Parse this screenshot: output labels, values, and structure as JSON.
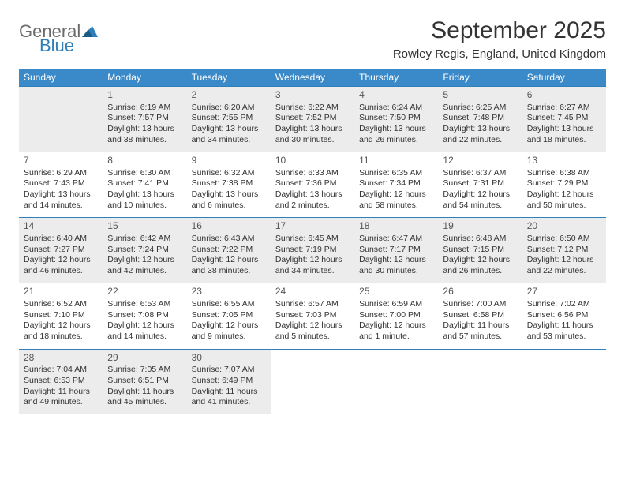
{
  "brand": {
    "line1": "General",
    "line2": "Blue"
  },
  "title": "September 2025",
  "location": "Rowley Regis, England, United Kingdom",
  "colors": {
    "header_bg": "#3a89c9",
    "header_text": "#ffffff",
    "rule": "#2f7fb8",
    "gray_cell": "#ececec",
    "logo_gray": "#6b6b6b",
    "logo_blue": "#2f7fb8"
  },
  "day_headers": [
    "Sunday",
    "Monday",
    "Tuesday",
    "Wednesday",
    "Thursday",
    "Friday",
    "Saturday"
  ],
  "weeks": [
    [
      {
        "num": "",
        "sunrise": "",
        "sunset": "",
        "daylight": "",
        "gray": true
      },
      {
        "num": "1",
        "sunrise": "Sunrise: 6:19 AM",
        "sunset": "Sunset: 7:57 PM",
        "daylight": "Daylight: 13 hours and 38 minutes.",
        "gray": true
      },
      {
        "num": "2",
        "sunrise": "Sunrise: 6:20 AM",
        "sunset": "Sunset: 7:55 PM",
        "daylight": "Daylight: 13 hours and 34 minutes.",
        "gray": true
      },
      {
        "num": "3",
        "sunrise": "Sunrise: 6:22 AM",
        "sunset": "Sunset: 7:52 PM",
        "daylight": "Daylight: 13 hours and 30 minutes.",
        "gray": true
      },
      {
        "num": "4",
        "sunrise": "Sunrise: 6:24 AM",
        "sunset": "Sunset: 7:50 PM",
        "daylight": "Daylight: 13 hours and 26 minutes.",
        "gray": true
      },
      {
        "num": "5",
        "sunrise": "Sunrise: 6:25 AM",
        "sunset": "Sunset: 7:48 PM",
        "daylight": "Daylight: 13 hours and 22 minutes.",
        "gray": true
      },
      {
        "num": "6",
        "sunrise": "Sunrise: 6:27 AM",
        "sunset": "Sunset: 7:45 PM",
        "daylight": "Daylight: 13 hours and 18 minutes.",
        "gray": true
      }
    ],
    [
      {
        "num": "7",
        "sunrise": "Sunrise: 6:29 AM",
        "sunset": "Sunset: 7:43 PM",
        "daylight": "Daylight: 13 hours and 14 minutes."
      },
      {
        "num": "8",
        "sunrise": "Sunrise: 6:30 AM",
        "sunset": "Sunset: 7:41 PM",
        "daylight": "Daylight: 13 hours and 10 minutes."
      },
      {
        "num": "9",
        "sunrise": "Sunrise: 6:32 AM",
        "sunset": "Sunset: 7:38 PM",
        "daylight": "Daylight: 13 hours and 6 minutes."
      },
      {
        "num": "10",
        "sunrise": "Sunrise: 6:33 AM",
        "sunset": "Sunset: 7:36 PM",
        "daylight": "Daylight: 13 hours and 2 minutes."
      },
      {
        "num": "11",
        "sunrise": "Sunrise: 6:35 AM",
        "sunset": "Sunset: 7:34 PM",
        "daylight": "Daylight: 12 hours and 58 minutes."
      },
      {
        "num": "12",
        "sunrise": "Sunrise: 6:37 AM",
        "sunset": "Sunset: 7:31 PM",
        "daylight": "Daylight: 12 hours and 54 minutes."
      },
      {
        "num": "13",
        "sunrise": "Sunrise: 6:38 AM",
        "sunset": "Sunset: 7:29 PM",
        "daylight": "Daylight: 12 hours and 50 minutes."
      }
    ],
    [
      {
        "num": "14",
        "sunrise": "Sunrise: 6:40 AM",
        "sunset": "Sunset: 7:27 PM",
        "daylight": "Daylight: 12 hours and 46 minutes.",
        "gray": true
      },
      {
        "num": "15",
        "sunrise": "Sunrise: 6:42 AM",
        "sunset": "Sunset: 7:24 PM",
        "daylight": "Daylight: 12 hours and 42 minutes.",
        "gray": true
      },
      {
        "num": "16",
        "sunrise": "Sunrise: 6:43 AM",
        "sunset": "Sunset: 7:22 PM",
        "daylight": "Daylight: 12 hours and 38 minutes.",
        "gray": true
      },
      {
        "num": "17",
        "sunrise": "Sunrise: 6:45 AM",
        "sunset": "Sunset: 7:19 PM",
        "daylight": "Daylight: 12 hours and 34 minutes.",
        "gray": true
      },
      {
        "num": "18",
        "sunrise": "Sunrise: 6:47 AM",
        "sunset": "Sunset: 7:17 PM",
        "daylight": "Daylight: 12 hours and 30 minutes.",
        "gray": true
      },
      {
        "num": "19",
        "sunrise": "Sunrise: 6:48 AM",
        "sunset": "Sunset: 7:15 PM",
        "daylight": "Daylight: 12 hours and 26 minutes.",
        "gray": true
      },
      {
        "num": "20",
        "sunrise": "Sunrise: 6:50 AM",
        "sunset": "Sunset: 7:12 PM",
        "daylight": "Daylight: 12 hours and 22 minutes.",
        "gray": true
      }
    ],
    [
      {
        "num": "21",
        "sunrise": "Sunrise: 6:52 AM",
        "sunset": "Sunset: 7:10 PM",
        "daylight": "Daylight: 12 hours and 18 minutes."
      },
      {
        "num": "22",
        "sunrise": "Sunrise: 6:53 AM",
        "sunset": "Sunset: 7:08 PM",
        "daylight": "Daylight: 12 hours and 14 minutes."
      },
      {
        "num": "23",
        "sunrise": "Sunrise: 6:55 AM",
        "sunset": "Sunset: 7:05 PM",
        "daylight": "Daylight: 12 hours and 9 minutes."
      },
      {
        "num": "24",
        "sunrise": "Sunrise: 6:57 AM",
        "sunset": "Sunset: 7:03 PM",
        "daylight": "Daylight: 12 hours and 5 minutes."
      },
      {
        "num": "25",
        "sunrise": "Sunrise: 6:59 AM",
        "sunset": "Sunset: 7:00 PM",
        "daylight": "Daylight: 12 hours and 1 minute."
      },
      {
        "num": "26",
        "sunrise": "Sunrise: 7:00 AM",
        "sunset": "Sunset: 6:58 PM",
        "daylight": "Daylight: 11 hours and 57 minutes."
      },
      {
        "num": "27",
        "sunrise": "Sunrise: 7:02 AM",
        "sunset": "Sunset: 6:56 PM",
        "daylight": "Daylight: 11 hours and 53 minutes."
      }
    ],
    [
      {
        "num": "28",
        "sunrise": "Sunrise: 7:04 AM",
        "sunset": "Sunset: 6:53 PM",
        "daylight": "Daylight: 11 hours and 49 minutes.",
        "gray": true
      },
      {
        "num": "29",
        "sunrise": "Sunrise: 7:05 AM",
        "sunset": "Sunset: 6:51 PM",
        "daylight": "Daylight: 11 hours and 45 minutes.",
        "gray": true
      },
      {
        "num": "30",
        "sunrise": "Sunrise: 7:07 AM",
        "sunset": "Sunset: 6:49 PM",
        "daylight": "Daylight: 11 hours and 41 minutes.",
        "gray": true
      },
      {
        "num": "",
        "sunrise": "",
        "sunset": "",
        "daylight": ""
      },
      {
        "num": "",
        "sunrise": "",
        "sunset": "",
        "daylight": ""
      },
      {
        "num": "",
        "sunrise": "",
        "sunset": "",
        "daylight": ""
      },
      {
        "num": "",
        "sunrise": "",
        "sunset": "",
        "daylight": ""
      }
    ]
  ]
}
